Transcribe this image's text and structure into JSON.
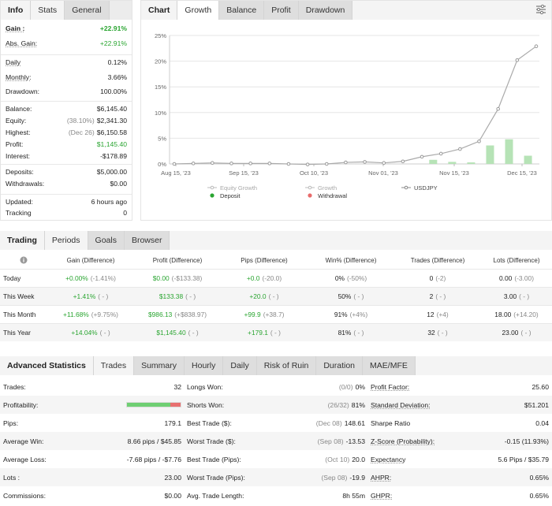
{
  "info_panel": {
    "tabs": [
      "Info",
      "Stats",
      "General"
    ],
    "rows": [
      {
        "label": "Gain :",
        "sub": "",
        "value": "+22.91%",
        "green": true,
        "bold": true
      },
      {
        "label": "Abs. Gain:",
        "sub": "",
        "value": "+22.91%",
        "green": true,
        "bold": false
      },
      {
        "label": "Daily",
        "sub": "",
        "value": "0.12%",
        "green": false
      },
      {
        "label": "Monthly:",
        "sub": "",
        "value": "3.66%",
        "green": false
      },
      {
        "label": "Drawdown:",
        "sub": "",
        "value": "100.00%",
        "green": false
      },
      {
        "label": "Balance:",
        "sub": "",
        "value": "$6,145.40",
        "green": false
      },
      {
        "label": "Equity:",
        "sub": "(38.10%)",
        "value": "$2,341.30",
        "green": false
      },
      {
        "label": "Highest:",
        "sub": "(Dec 26)",
        "value": "$6,150.58",
        "green": false
      },
      {
        "label": "Profit:",
        "sub": "",
        "value": "$1,145.40",
        "green": true
      },
      {
        "label": "Interest:",
        "sub": "",
        "value": "-$178.89",
        "green": false
      },
      {
        "label": "Deposits:",
        "sub": "",
        "value": "$5,000.00",
        "green": false
      },
      {
        "label": "Withdrawals:",
        "sub": "",
        "value": "$0.00",
        "green": false
      },
      {
        "label": "Updated:",
        "sub": "",
        "value": "6 hours ago",
        "green": false
      },
      {
        "label": "Tracking",
        "sub": "",
        "value": "0",
        "green": false
      }
    ]
  },
  "chart_panel": {
    "tabs": [
      "Chart",
      "Growth",
      "Balance",
      "Profit",
      "Drawdown"
    ],
    "settings_icon": "sliders-icon",
    "legend": {
      "equity_growth": "Equity Growth",
      "growth": "Growth",
      "usdjpy": "USDJPY",
      "deposit": "Deposit",
      "withdrawal": "Withdrawal"
    }
  },
  "chart_data": {
    "type": "line",
    "x_tick_labels": [
      "Aug 15, '23",
      "Sep 15, '23",
      "Oct 10, '23",
      "Nov 01, '23",
      "Nov 15, '23",
      "Dec 15, '23"
    ],
    "y_tick_labels": [
      "0%",
      "5%",
      "10%",
      "15%",
      "20%",
      "25%"
    ],
    "ylim": [
      0,
      25
    ],
    "series": [
      {
        "values": [
          0,
          0.1,
          0.2,
          0.1,
          0.1,
          0.1,
          0,
          -0.1,
          0,
          0.3,
          0.4,
          0.2,
          0.5,
          1.4,
          2.0,
          2.9,
          4.4,
          10.7,
          20.2,
          22.9
        ]
      },
      {
        "values": [
          0,
          0,
          0,
          0,
          0,
          0,
          0,
          0,
          0,
          0,
          0,
          0,
          0,
          0.8,
          0.4,
          0.3,
          3.6,
          4.8,
          1.6
        ]
      }
    ],
    "grid": true,
    "legend_position": "bottom"
  },
  "periods": {
    "tabs": [
      "Trading",
      "Periods",
      "Goals",
      "Browser"
    ],
    "headers": [
      "Gain (Difference)",
      "Profit (Difference)",
      "Pips (Difference)",
      "Win% (Difference)",
      "Trades (Difference)",
      "Lots (Difference)"
    ],
    "rows": [
      {
        "name": "Today",
        "gain": "+0.00%",
        "gain_d": "(-1.41%)",
        "profit": "$0.00",
        "profit_d": "(-$133.38)",
        "pips": "+0.0",
        "pips_d": "(-20.0)",
        "win": "0%",
        "win_d": "(-50%)",
        "trades": "0",
        "trades_d": "(-2)",
        "lots": "0.00",
        "lots_d": "(-3.00)"
      },
      {
        "name": "This Week",
        "gain": "+1.41%",
        "gain_d": "( - )",
        "profit": "$133.38",
        "profit_d": "( - )",
        "pips": "+20.0",
        "pips_d": "( - )",
        "win": "50%",
        "win_d": "( - )",
        "trades": "2",
        "trades_d": "( - )",
        "lots": "3.00",
        "lots_d": "( - )"
      },
      {
        "name": "This Month",
        "gain": "+11.68%",
        "gain_d": "(+9.75%)",
        "profit": "$986.13",
        "profit_d": "(+$838.97)",
        "pips": "+99.9",
        "pips_d": "(+38.7)",
        "win": "91%",
        "win_d": "(+4%)",
        "trades": "12",
        "trades_d": "(+4)",
        "lots": "18.00",
        "lots_d": "(+14.20)"
      },
      {
        "name": "This Year",
        "gain": "+14.04%",
        "gain_d": "( - )",
        "profit": "$1,145.40",
        "profit_d": "( - )",
        "pips": "+179.1",
        "pips_d": "( - )",
        "win": "81%",
        "win_d": "( - )",
        "trades": "32",
        "trades_d": "( - )",
        "lots": "23.00",
        "lots_d": "( - )"
      }
    ]
  },
  "advanced": {
    "tabs": [
      "Advanced Statistics",
      "Trades",
      "Summary",
      "Hourly",
      "Daily",
      "Risk of Ruin",
      "Duration",
      "MAE/MFE"
    ],
    "profitability_fraction": 0.81,
    "rows": [
      {
        "l1": "Trades:",
        "v1": "32",
        "l2": "Longs Won:",
        "s2": "(0/0)",
        "v2": "0%",
        "l3": "Profit Factor:",
        "v3": "25.60"
      },
      {
        "l1": "Profitability:",
        "v1": "",
        "l2": "Shorts Won:",
        "s2": "(26/32)",
        "v2": "81%",
        "l3": "Standard Deviation:",
        "v3": "$51.201"
      },
      {
        "l1": "Pips:",
        "v1": "179.1",
        "l2": "Best Trade ($):",
        "s2": "(Dec 08)",
        "v2": "148.61",
        "l3": "Sharpe Ratio",
        "v3": "0.04"
      },
      {
        "l1": "Average Win:",
        "v1": "8.66 pips / $45.85",
        "l2": "Worst Trade ($):",
        "s2": "(Sep 08)",
        "v2": "-13.53",
        "l3": "Z-Score (Probability):",
        "v3": "-0.15 (11.93%)"
      },
      {
        "l1": "Average Loss:",
        "v1": "-7.68 pips / -$7.76",
        "l2": "Best Trade (Pips):",
        "s2": "(Oct 10)",
        "v2": "20.0",
        "l3": "Expectancy",
        "v3": "5.6 Pips / $35.79"
      },
      {
        "l1": "Lots :",
        "v1": "23.00",
        "l2": "Worst Trade (Pips):",
        "s2": "(Sep 08)",
        "v2": "-19.9",
        "l3": "AHPR:",
        "v3": "0.65%"
      },
      {
        "l1": "Commissions:",
        "v1": "$0.00",
        "l2": "Avg. Trade Length:",
        "s2": "",
        "v2": "8h 55m",
        "l3": "GHPR:",
        "v3": "0.65%"
      }
    ]
  }
}
